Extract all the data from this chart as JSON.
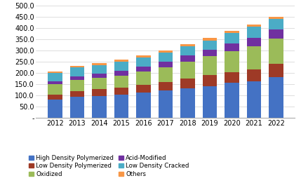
{
  "years": [
    2012,
    2013,
    2014,
    2015,
    2016,
    2017,
    2018,
    2019,
    2020,
    2021,
    2022
  ],
  "segments": {
    "High Density Polymerized": [
      82,
      93,
      97,
      102,
      112,
      122,
      130,
      142,
      155,
      163,
      183
    ],
    "Low Density Polymerized": [
      22,
      25,
      30,
      32,
      35,
      38,
      45,
      50,
      48,
      52,
      58
    ],
    "Oxidized": [
      45,
      50,
      52,
      55,
      60,
      65,
      75,
      82,
      95,
      105,
      112
    ],
    "Acid-Modified": [
      15,
      18,
      18,
      22,
      22,
      25,
      28,
      30,
      32,
      38,
      42
    ],
    "Low Density Cracked": [
      35,
      38,
      38,
      40,
      40,
      40,
      40,
      40,
      48,
      48,
      45
    ],
    "Others": [
      8,
      8,
      9,
      9,
      9,
      10,
      10,
      11,
      10,
      9,
      10
    ]
  },
  "colors": {
    "High Density Polymerized": "#4472C4",
    "Low Density Polymerized": "#9E3A26",
    "Oxidized": "#9BBB59",
    "Acid-Modified": "#7030A0",
    "Low Density Cracked": "#4BACC6",
    "Others": "#F79646"
  },
  "ylim": [
    0,
    500
  ],
  "yticks": [
    0,
    50,
    100,
    150,
    200,
    250,
    300,
    350,
    400,
    450,
    500
  ],
  "ytick_labels": [
    "-",
    "50.0",
    "100.0",
    "150.0",
    "200.0",
    "250.0",
    "300.0",
    "350.0",
    "400.0",
    "450.0",
    "500.0"
  ],
  "segment_order": [
    "High Density Polymerized",
    "Low Density Polymerized",
    "Oxidized",
    "Acid-Modified",
    "Low Density Cracked",
    "Others"
  ],
  "legend_order": [
    "High Density Polymerized",
    "Low Density Polymerized",
    "Oxidized",
    "Acid-Modified",
    "Low Density Cracked",
    "Others"
  ],
  "background_color": "#ffffff",
  "bar_width": 0.65,
  "grid_color": "#d0d0d0",
  "tick_fontsize": 7,
  "legend_fontsize": 6.2
}
